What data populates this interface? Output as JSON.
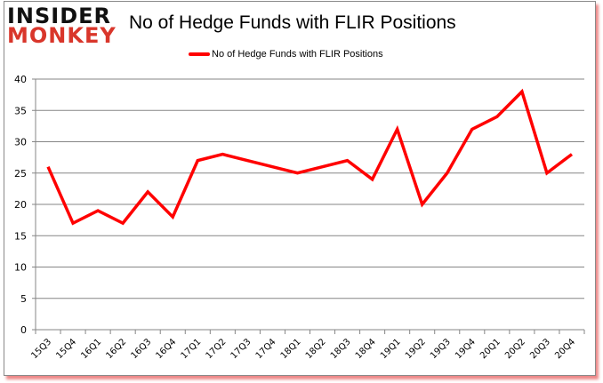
{
  "logo": {
    "line1": "INSIDER",
    "line2": "MONKEY"
  },
  "chart_data": {
    "type": "line",
    "title": "No of Hedge Funds with FLIR Positions",
    "xlabel": "",
    "ylabel": "",
    "ylim": [
      0,
      40
    ],
    "yticks": [
      0,
      5,
      10,
      15,
      20,
      25,
      30,
      35,
      40
    ],
    "grid": true,
    "legend_position": "top",
    "categories": [
      "15Q3",
      "15Q4",
      "16Q1",
      "16Q2",
      "16Q3",
      "16Q4",
      "17Q1",
      "17Q2",
      "17Q3",
      "17Q4",
      "18Q1",
      "18Q2",
      "18Q3",
      "18Q4",
      "19Q1",
      "19Q2",
      "19Q3",
      "19Q4",
      "20Q1",
      "20Q2",
      "20Q3",
      "20Q4"
    ],
    "series": [
      {
        "name": "No of Hedge Funds with FLIR Positions",
        "color": "#ff0000",
        "values": [
          26,
          17,
          19,
          17,
          22,
          18,
          27,
          28,
          27,
          26,
          25,
          26,
          27,
          24,
          32,
          20,
          25,
          32,
          34,
          38,
          25,
          28
        ]
      }
    ]
  }
}
